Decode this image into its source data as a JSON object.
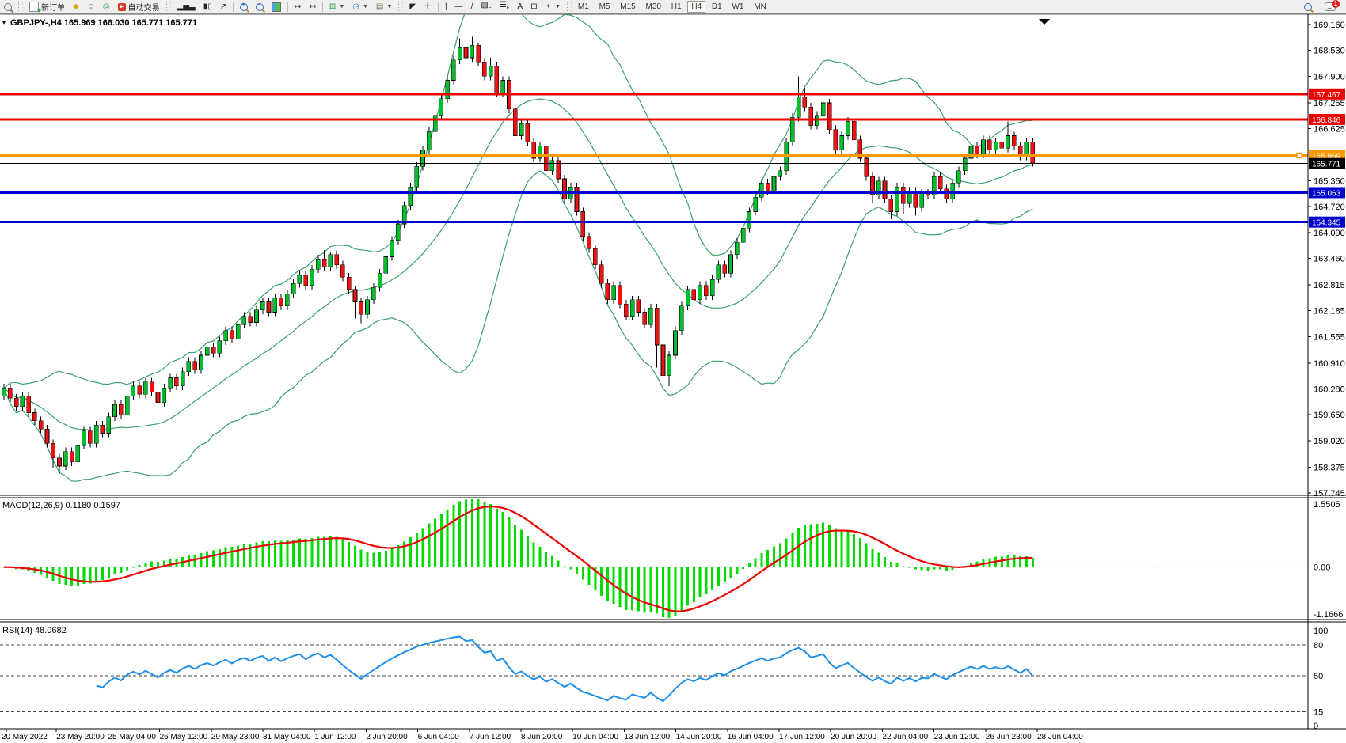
{
  "toolbar": {
    "new_order_label": "新订单",
    "autotrading_label": "自动交易",
    "timeframes": [
      "M1",
      "M5",
      "M15",
      "M30",
      "H1",
      "H4",
      "D1",
      "W1",
      "MN"
    ],
    "active_timeframe": "H4",
    "notification_count": "1"
  },
  "chart": {
    "symbol_line": "GBPJPY-,H4  165.969 166.030 165.771 165.771",
    "macd_label": "MACD(12,26,9) 0.1180 0.1597",
    "rsi_label": "RSI(14) 48.0682"
  },
  "chart_data": [
    {
      "type": "candlestick",
      "symbol": "GBPJPY-",
      "timeframe": "H4",
      "current_bar": {
        "open": 165.969,
        "high": 166.03,
        "low": 165.771,
        "close": 165.771
      },
      "ylim": [
        157.705,
        169.372
      ],
      "y_axis_ticks": [
        169.16,
        168.53,
        167.9,
        167.255,
        166.625,
        165.35,
        164.72,
        164.09,
        163.46,
        162.815,
        162.185,
        161.555,
        160.91,
        160.28,
        159.65,
        159.02,
        158.375,
        157.745
      ],
      "hlines": [
        {
          "price": 167.467,
          "color": "#ee0000",
          "width": 3,
          "badge": "167.467"
        },
        {
          "price": 166.846,
          "color": "#ee0000",
          "width": 3,
          "badge": "166.846"
        },
        {
          "price": 165.969,
          "color": "#ff9900",
          "width": 3,
          "badge": "165.969",
          "marker": true
        },
        {
          "price": 165.771,
          "color": "#000000",
          "width": 1,
          "badge": "165.771"
        },
        {
          "price": 165.063,
          "color": "#0000cc",
          "width": 3,
          "badge": "165.063"
        },
        {
          "price": 164.345,
          "color": "#0000cc",
          "width": 3,
          "badge": "164.345"
        }
      ],
      "x_labels": [
        "20 May 2022",
        "23 May 20:00",
        "25 May 04:00",
        "26 May 12:00",
        "29 May 23:00",
        "31 May 04:00",
        "1 Jun 12:00",
        "2 Jun 20:00",
        "6 Jun 04:00",
        "7 Jun 12:00",
        "8 Jun 20:00",
        "10 Jun 04:00",
        "13 Jun 12:00",
        "14 Jun 20:00",
        "16 Jun 04:00",
        "17 Jun 12:00",
        "20 Jun 20:00",
        "22 Jun 04:00",
        "23 Jun 12:00",
        "26 Jun 23:00",
        "28 Jun 04:00"
      ],
      "first_open": 160.1,
      "default_wick": 0.1,
      "closes": [
        160.3,
        160.05,
        159.85,
        160.1,
        159.7,
        159.5,
        159.3,
        158.95,
        158.6,
        158.4,
        158.75,
        158.5,
        158.9,
        159.25,
        158.95,
        159.4,
        159.2,
        159.6,
        159.9,
        159.65,
        160.1,
        160.35,
        160.15,
        160.45,
        160.2,
        159.95,
        160.3,
        160.55,
        160.35,
        160.7,
        160.95,
        160.75,
        161.1,
        161.3,
        161.15,
        161.45,
        161.7,
        161.5,
        161.85,
        162.05,
        161.9,
        162.2,
        162.4,
        162.15,
        162.5,
        162.3,
        162.6,
        162.85,
        163.05,
        162.8,
        163.2,
        163.45,
        163.25,
        163.55,
        163.3,
        163.0,
        162.7,
        162.4,
        162.1,
        162.45,
        162.75,
        163.1,
        163.5,
        163.9,
        164.3,
        164.75,
        165.2,
        165.7,
        166.1,
        166.55,
        166.95,
        167.35,
        167.8,
        168.3,
        168.6,
        168.35,
        168.65,
        168.25,
        167.9,
        168.15,
        167.5,
        167.8,
        167.1,
        166.45,
        166.75,
        166.3,
        165.9,
        166.2,
        165.6,
        165.85,
        165.4,
        164.9,
        165.2,
        164.6,
        164.0,
        163.7,
        163.3,
        162.85,
        162.45,
        162.8,
        162.35,
        162.05,
        162.45,
        162.15,
        161.85,
        162.25,
        161.35,
        160.6,
        161.1,
        161.7,
        162.3,
        162.7,
        162.45,
        162.8,
        162.55,
        162.95,
        163.3,
        163.1,
        163.55,
        163.85,
        164.2,
        164.6,
        164.95,
        165.3,
        165.1,
        165.45,
        165.6,
        166.3,
        166.9,
        167.4,
        167.15,
        166.7,
        166.95,
        167.25,
        166.6,
        166.1,
        166.45,
        166.8,
        166.35,
        165.9,
        165.45,
        165.0,
        165.35,
        164.9,
        164.6,
        165.2,
        164.8,
        165.1,
        164.7,
        165.05,
        165.0,
        165.45,
        165.15,
        164.9,
        165.3,
        165.6,
        165.9,
        166.2,
        166.0,
        166.35,
        166.1,
        166.3,
        166.15,
        166.45,
        166.2,
        165.95,
        166.3,
        165.771
      ],
      "wick_overrides": {
        "8": [
          null,
          158.35
        ],
        "9": [
          null,
          158.22
        ],
        "10": [
          null,
          158.3
        ],
        "52": [
          163.66,
          null
        ],
        "53": [
          163.62,
          null
        ],
        "57": [
          null,
          162.0
        ],
        "58": [
          null,
          161.88
        ],
        "74": [
          168.82,
          null
        ],
        "76": [
          168.86,
          null
        ],
        "77": [
          168.72,
          null
        ],
        "79": [
          168.35,
          null
        ],
        "101": [
          null,
          161.95
        ],
        "106": [
          null,
          160.8
        ],
        "107": [
          null,
          160.22
        ],
        "108": [
          null,
          160.35
        ],
        "129": [
          167.9,
          null
        ],
        "130": [
          167.62,
          null
        ],
        "141": [
          null,
          164.8
        ],
        "144": [
          null,
          164.42
        ],
        "146": [
          null,
          164.55
        ],
        "148": [
          null,
          164.5
        ],
        "163": [
          166.8,
          null
        ],
        "167": [
          null,
          165.7
        ]
      },
      "bollinger": {
        "period": 20,
        "deviation": 2,
        "color": "#3aa06e"
      },
      "up_color": "#00bf2c",
      "down_color": "#ef1212",
      "wick_color": "#000000"
    },
    {
      "type": "macd",
      "params": [
        12,
        26,
        9
      ],
      "display_values": [
        0.118,
        0.1597
      ],
      "derived_from_closes": true,
      "ylim": [
        -1.1666,
        1.5505
      ],
      "y_axis_ticks": [
        "1.5505",
        "0.00",
        "-1.1666"
      ],
      "histogram_color": "#00dc00",
      "signal_color": "#f00000"
    },
    {
      "type": "rsi",
      "period": 14,
      "value": 48.0682,
      "derived_from_closes": true,
      "ylim": [
        0,
        100
      ],
      "levels": [
        80,
        50,
        15
      ],
      "y_axis_ticks": [
        "100",
        "80",
        "50",
        "15",
        "0"
      ],
      "color": "#1e8fe8"
    }
  ]
}
